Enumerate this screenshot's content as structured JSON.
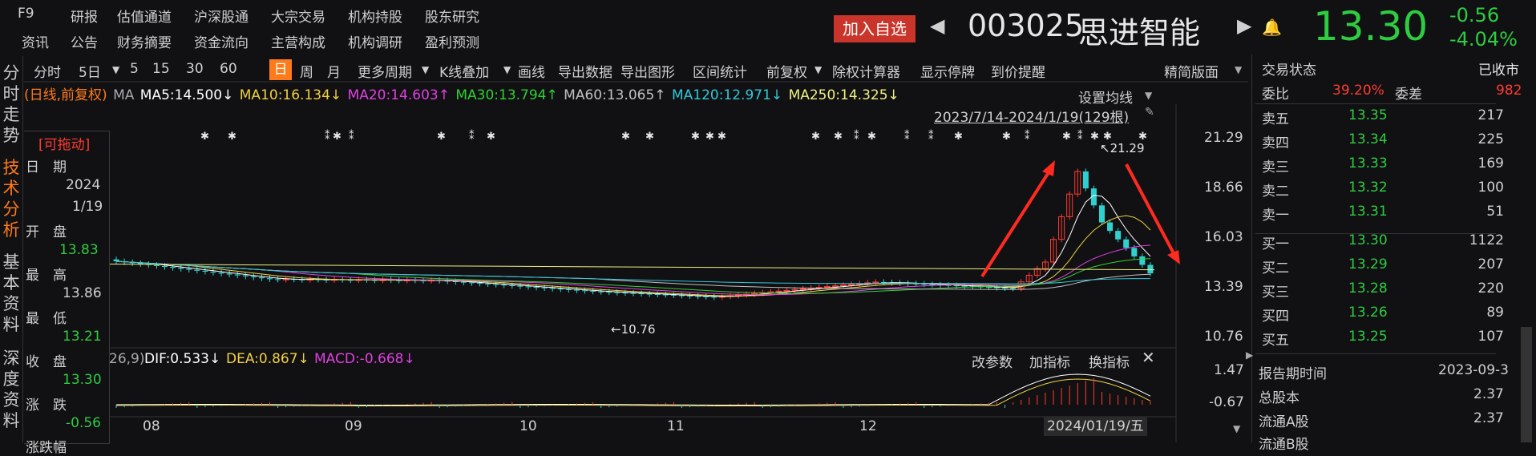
{
  "top_menu": {
    "row1": [
      "F9",
      "研报",
      "估值通道",
      "沪深股通",
      "大宗交易",
      "机构持股",
      "股东研究"
    ],
    "row2": [
      "资讯",
      "公告",
      "财务摘要",
      "资金流向",
      "主营构成",
      "机构调研",
      "盈利预测"
    ]
  },
  "header": {
    "add_fav": "加入自选",
    "code": "003025",
    "name": "思进智能",
    "price": "13.30",
    "change": "-0.56",
    "change_pct": "-4.04%"
  },
  "left_nav": [
    {
      "label": "分时走势",
      "active": false
    },
    {
      "label": "技术分析",
      "active": true
    },
    {
      "label": "基本资料",
      "active": false
    },
    {
      "label": "深度资料",
      "active": false
    }
  ],
  "toolbar": {
    "items": [
      "分时",
      "5日",
      "5",
      "15",
      "30",
      "60",
      "日",
      "周",
      "月",
      "更多周期",
      "K线叠加",
      "画线",
      "导出数据",
      "导出图形",
      "区间统计",
      "前复权",
      "除权计算器",
      "显示停牌",
      "到价提醒"
    ],
    "simplified": "精简版面"
  },
  "ma_line": {
    "prefix": "(日线,前复权)",
    "ma_label": "MA",
    "ma5": "MA5:14.500↓",
    "ma10": "MA10:16.134↓",
    "ma20": "MA20:14.603↑",
    "ma30": "MA30:13.794↑",
    "ma60": "MA60:13.065↑",
    "ma120": "MA120:12.971↓",
    "ma250": "MA250:14.325↓"
  },
  "chart_header": {
    "set_ma": "设置均线",
    "range": "2023/7/14-2024/1/19(129根)"
  },
  "info_panel": {
    "draggable": "[可拖动]",
    "date_label": "日　期",
    "year": "2024",
    "date": "1/19",
    "open_label": "开　盘",
    "open": "13.83",
    "high_label": "最　高",
    "high": "13.86",
    "low_label": "最　低",
    "low": "13.21",
    "close_label": "收　盘",
    "close": "13.30",
    "chg_label": "涨　跌",
    "chg": "-0.56",
    "chg_pct_label": "涨跌幅"
  },
  "price_axis": [
    "21.29",
    "18.66",
    "16.03",
    "13.39",
    "10.76"
  ],
  "price_annotations": {
    "high": "21.29",
    "low": "10.76"
  },
  "macd": {
    "params": "26,9)",
    "dif": "DIF:0.533↓",
    "dea": "DEA:0.867↓",
    "macd": "MACD:-0.668↓",
    "change_params": "改参数",
    "add_indicator": "加指标",
    "switch_indicator": "换指标",
    "axis": [
      "1.47",
      "-0.67"
    ]
  },
  "x_axis": [
    "08",
    "09",
    "10",
    "11",
    "12"
  ],
  "cursor_date": "2024/01/19/五",
  "right_panel": {
    "trade_status_label": "交易状态",
    "trade_status": "已收市",
    "weibi_label": "委比",
    "weibi": "39.20%",
    "weicha_label": "委差",
    "weicha": "982",
    "asks": [
      {
        "label": "卖五",
        "price": "13.35",
        "vol": "217"
      },
      {
        "label": "卖四",
        "price": "13.34",
        "vol": "225"
      },
      {
        "label": "卖三",
        "price": "13.33",
        "vol": "169"
      },
      {
        "label": "卖二",
        "price": "13.32",
        "vol": "100"
      },
      {
        "label": "卖一",
        "price": "13.31",
        "vol": "51"
      }
    ],
    "bids": [
      {
        "label": "买一",
        "price": "13.30",
        "vol": "1122"
      },
      {
        "label": "买二",
        "price": "13.29",
        "vol": "207"
      },
      {
        "label": "买三",
        "price": "13.28",
        "vol": "220"
      },
      {
        "label": "买四",
        "price": "13.26",
        "vol": "89"
      },
      {
        "label": "买五",
        "price": "13.25",
        "vol": "107"
      }
    ],
    "report_label": "报告期时间",
    "report": "2023-09-3",
    "total_shares_label": "总股本",
    "total_shares": "2.37",
    "float_a_label": "流通A股",
    "float_a": "2.37",
    "float_b_label": "流通B股"
  },
  "colors": {
    "up": "#ff3b30",
    "down": "#2ecc40",
    "accent": "#ff7a1a",
    "ma5": "#ffffff",
    "ma10": "#f0d040",
    "ma20": "#e040e0",
    "ma30": "#30d030",
    "ma60": "#c0c0c0",
    "ma120": "#30c8d8",
    "ma250": "#f0f080"
  }
}
